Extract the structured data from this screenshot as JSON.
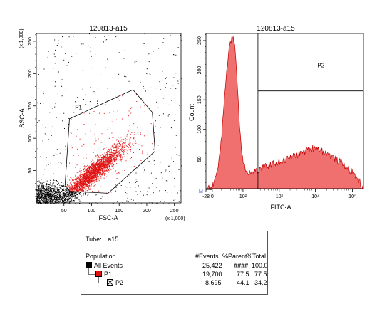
{
  "chart_data": [
    {
      "type": "scatter",
      "title": "120813-a15",
      "xlabel": "FSC-A",
      "ylabel": "SSC-A",
      "x_multiplier_label": "(x 1,000)",
      "y_multiplier_label": "(x 1,000)",
      "xlim": [
        0,
        262
      ],
      "ylim": [
        0,
        262
      ],
      "x_ticks": [
        "50",
        "100",
        "150",
        "200",
        "250"
      ],
      "x_tick_values": [
        50,
        100,
        150,
        200,
        250
      ],
      "y_ticks": [
        "50",
        "100",
        "150",
        "200",
        "250"
      ],
      "y_tick_values": [
        50,
        100,
        150,
        200,
        250
      ],
      "gate": {
        "name": "P1",
        "polygon": [
          [
            52,
            28
          ],
          [
            60,
            130
          ],
          [
            175,
            175
          ],
          [
            210,
            140
          ],
          [
            215,
            80
          ],
          [
            130,
            15
          ],
          [
            60,
            18
          ]
        ],
        "color": "#e01010"
      },
      "ungated_color": "#000000",
      "point_clusters": [
        {
          "center": [
            20,
            12
          ],
          "spread": [
            18,
            10
          ],
          "color": "#000000"
        },
        {
          "center": [
            100,
            45
          ],
          "spread": [
            25,
            20
          ],
          "color": "#e01010"
        }
      ]
    },
    {
      "type": "area",
      "title": "120813-a15",
      "xlabel": "FITC-A",
      "ylabel": "Count",
      "ylim": [
        0,
        262
      ],
      "y_ticks": [
        "50",
        "100",
        "150",
        "200",
        "250"
      ],
      "y_tick_values": [
        50,
        100,
        150,
        200,
        250
      ],
      "x_ticks": [
        "-28",
        "0",
        "10²",
        "10³",
        "10⁴",
        "10⁵"
      ],
      "fill_color": "#f07070",
      "line_color": "#c00000",
      "marker_label": "M",
      "gate": {
        "name": "P2",
        "y_line": 165
      },
      "series": [
        {
          "x": [
            0.0,
            0.03,
            0.05,
            0.08,
            0.1,
            0.12,
            0.14,
            0.16,
            0.17,
            0.18,
            0.19,
            0.2,
            0.21,
            0.22,
            0.23,
            0.24,
            0.25,
            0.26,
            0.28,
            0.3,
            0.33,
            0.36,
            0.4,
            0.45,
            0.5,
            0.55,
            0.6,
            0.65,
            0.7,
            0.75,
            0.8,
            0.85,
            0.9,
            0.95,
            1.0
          ],
          "values": [
            0,
            3,
            10,
            38,
            92,
            165,
            222,
            252,
            258,
            248,
            216,
            172,
            122,
            82,
            58,
            44,
            35,
            30,
            26,
            28,
            30,
            34,
            40,
            44,
            48,
            54,
            60,
            66,
            70,
            62,
            54,
            45,
            35,
            22,
            0
          ]
        }
      ]
    }
  ],
  "stats_table": {
    "tube_label": "Tube:",
    "tube_value": "a15",
    "headers": {
      "population": "Population",
      "events": "#Events",
      "parent": "%Parent",
      "total": "%Total"
    },
    "rows": [
      {
        "name": "All Events",
        "events": "25,422",
        "parent": "####",
        "total": "100.0",
        "color": "#000000"
      },
      {
        "name": "P1",
        "events": "19,700",
        "parent": "77.5",
        "total": "77.5",
        "color": "#e01010"
      },
      {
        "name": "P2",
        "events": "8,695",
        "parent": "44.1",
        "total": "34.2",
        "color": "#ffffff"
      }
    ]
  }
}
